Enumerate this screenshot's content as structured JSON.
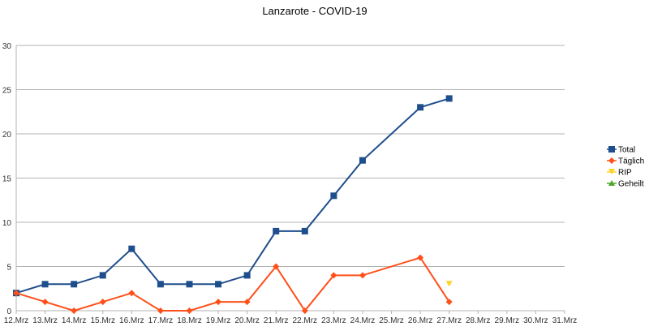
{
  "chart_data": {
    "type": "line",
    "title": "Lanzarote - COVID-19",
    "xlabel": "",
    "ylabel": "",
    "ylim": [
      0,
      30
    ],
    "yticks": [
      0,
      5,
      10,
      15,
      20,
      25,
      30
    ],
    "grid": true,
    "legend_position": "right",
    "categories": [
      "12.Mrz",
      "13.Mrz",
      "14.Mrz",
      "15.Mrz",
      "16.Mrz",
      "17.Mrz",
      "18.Mrz",
      "19.Mrz",
      "20.Mrz",
      "21.Mrz",
      "22.Mrz",
      "23.Mrz",
      "24.Mrz",
      "25.Mrz",
      "26.Mrz",
      "27.Mrz",
      "28.Mrz",
      "29.Mrz",
      "30.Mrz",
      "31.Mrz"
    ],
    "series": [
      {
        "name": "Total",
        "color": "#1f4e8c",
        "marker": "square",
        "values": [
          2,
          3,
          3,
          4,
          7,
          3,
          3,
          3,
          4,
          9,
          9,
          13,
          17,
          null,
          23,
          24,
          null,
          null,
          null,
          null
        ]
      },
      {
        "name": "Täglich",
        "color": "#ff4f1a",
        "marker": "diamond",
        "values": [
          2,
          1,
          0,
          1,
          2,
          0,
          0,
          1,
          1,
          5,
          0,
          4,
          4,
          null,
          6,
          1,
          null,
          null,
          null,
          null
        ]
      },
      {
        "name": "RIP",
        "color": "#ffd21f",
        "marker": "triangle-down",
        "values": [
          null,
          null,
          null,
          null,
          null,
          null,
          null,
          null,
          null,
          null,
          null,
          null,
          null,
          null,
          null,
          3,
          null,
          null,
          null,
          null
        ]
      },
      {
        "name": "Geheilt",
        "color": "#4ea72e",
        "marker": "triangle-up",
        "values": [
          null,
          null,
          null,
          null,
          null,
          null,
          null,
          null,
          null,
          null,
          null,
          null,
          null,
          null,
          null,
          null,
          null,
          null,
          null,
          null
        ]
      }
    ]
  }
}
